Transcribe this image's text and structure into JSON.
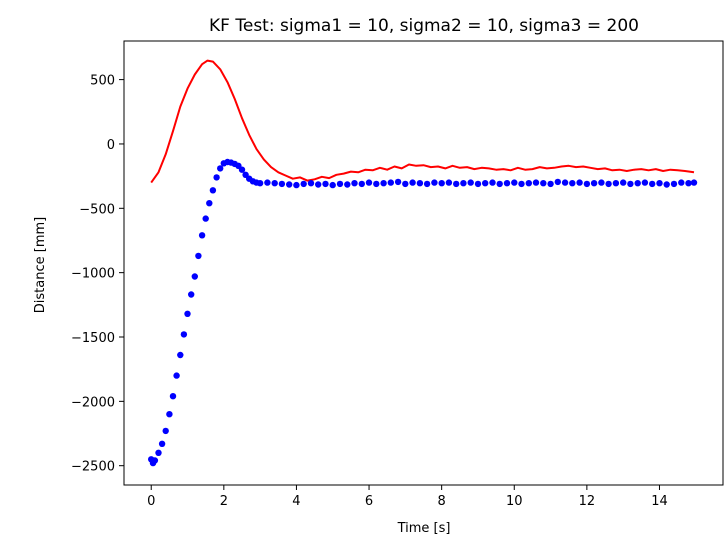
{
  "chart_data": {
    "type": "line",
    "title": "KF Test: sigma1 = 10, sigma2 = 10, sigma3 = 200",
    "xlabel": "Time [s]",
    "ylabel": "Distance [mm]",
    "xlim": [
      -0.75,
      15.75
    ],
    "ylim": [
      -2650,
      800
    ],
    "x_ticks": [
      0,
      2,
      4,
      6,
      8,
      10,
      12,
      14
    ],
    "y_ticks": [
      500,
      0,
      -500,
      -1000,
      -1500,
      -2000,
      -2500
    ],
    "x_tick_labels": [
      "0",
      "2",
      "4",
      "6",
      "8",
      "10",
      "12",
      "14"
    ],
    "y_tick_labels": [
      "500",
      "0",
      "−500",
      "−1000",
      "−1500",
      "−2000",
      "−2500"
    ],
    "grid": false,
    "legend": "none",
    "series": [
      {
        "style": "line",
        "color": "#ff0000",
        "x": [
          0,
          0.2,
          0.4,
          0.6,
          0.8,
          1.0,
          1.2,
          1.4,
          1.55,
          1.7,
          1.9,
          2.1,
          2.3,
          2.5,
          2.7,
          2.9,
          3.1,
          3.3,
          3.5,
          3.7,
          3.9,
          4.1,
          4.3,
          4.5,
          4.7,
          4.9,
          5.1,
          5.3,
          5.5,
          5.7,
          5.9,
          6.1,
          6.3,
          6.5,
          6.7,
          6.9,
          7.1,
          7.3,
          7.5,
          7.7,
          7.9,
          8.1,
          8.3,
          8.5,
          8.7,
          8.9,
          9.1,
          9.3,
          9.5,
          9.7,
          9.9,
          10.1,
          10.3,
          10.5,
          10.7,
          10.9,
          11.1,
          11.3,
          11.5,
          11.7,
          11.9,
          12.1,
          12.3,
          12.5,
          12.7,
          12.9,
          13.1,
          13.3,
          13.5,
          13.7,
          13.9,
          14.1,
          14.3,
          14.5,
          14.7,
          14.95
        ],
        "y": [
          -300,
          -220,
          -80,
          100,
          290,
          430,
          540,
          620,
          648,
          640,
          580,
          480,
          350,
          200,
          70,
          -40,
          -120,
          -180,
          -220,
          -245,
          -270,
          -260,
          -285,
          -275,
          -255,
          -265,
          -240,
          -230,
          -215,
          -220,
          -200,
          -205,
          -185,
          -200,
          -175,
          -190,
          -160,
          -170,
          -165,
          -180,
          -175,
          -190,
          -170,
          -185,
          -180,
          -195,
          -185,
          -190,
          -200,
          -195,
          -205,
          -185,
          -200,
          -195,
          -180,
          -190,
          -185,
          -175,
          -170,
          -180,
          -175,
          -185,
          -195,
          -190,
          -205,
          -200,
          -210,
          -200,
          -195,
          -205,
          -195,
          -210,
          -200,
          -205,
          -210,
          -220
        ]
      },
      {
        "style": "markers",
        "color": "#0000ff",
        "x": [
          0,
          0.05,
          0.1,
          0.2,
          0.3,
          0.4,
          0.5,
          0.6,
          0.7,
          0.8,
          0.9,
          1.0,
          1.1,
          1.2,
          1.3,
          1.4,
          1.5,
          1.6,
          1.7,
          1.8,
          1.9,
          2.0,
          2.1,
          2.2,
          2.3,
          2.4,
          2.5,
          2.6,
          2.7,
          2.8,
          2.9,
          3.0,
          3.2,
          3.4,
          3.6,
          3.8,
          4.0,
          4.2,
          4.4,
          4.6,
          4.8,
          5.0,
          5.2,
          5.4,
          5.6,
          5.8,
          6.0,
          6.2,
          6.4,
          6.6,
          6.8,
          7.0,
          7.2,
          7.4,
          7.6,
          7.8,
          8.0,
          8.2,
          8.4,
          8.6,
          8.8,
          9.0,
          9.2,
          9.4,
          9.6,
          9.8,
          10.0,
          10.2,
          10.4,
          10.6,
          10.8,
          11.0,
          11.2,
          11.4,
          11.6,
          11.8,
          12.0,
          12.2,
          12.4,
          12.6,
          12.8,
          13.0,
          13.2,
          13.4,
          13.6,
          13.8,
          14.0,
          14.2,
          14.4,
          14.6,
          14.8,
          14.95
        ],
        "y": [
          -2450,
          -2480,
          -2460,
          -2400,
          -2330,
          -2230,
          -2100,
          -1960,
          -1800,
          -1640,
          -1480,
          -1320,
          -1170,
          -1030,
          -870,
          -710,
          -580,
          -460,
          -360,
          -260,
          -190,
          -150,
          -140,
          -145,
          -155,
          -170,
          -200,
          -240,
          -270,
          -290,
          -300,
          -305,
          -300,
          -305,
          -310,
          -315,
          -320,
          -310,
          -305,
          -315,
          -310,
          -320,
          -310,
          -315,
          -305,
          -310,
          -300,
          -310,
          -305,
          -300,
          -295,
          -310,
          -300,
          -305,
          -310,
          -300,
          -305,
          -300,
          -310,
          -305,
          -300,
          -310,
          -305,
          -300,
          -310,
          -305,
          -300,
          -310,
          -305,
          -300,
          -305,
          -310,
          -295,
          -300,
          -305,
          -300,
          -310,
          -305,
          -300,
          -310,
          -305,
          -300,
          -310,
          -305,
          -300,
          -310,
          -305,
          -315,
          -310,
          -300,
          -305,
          -300
        ]
      }
    ]
  }
}
